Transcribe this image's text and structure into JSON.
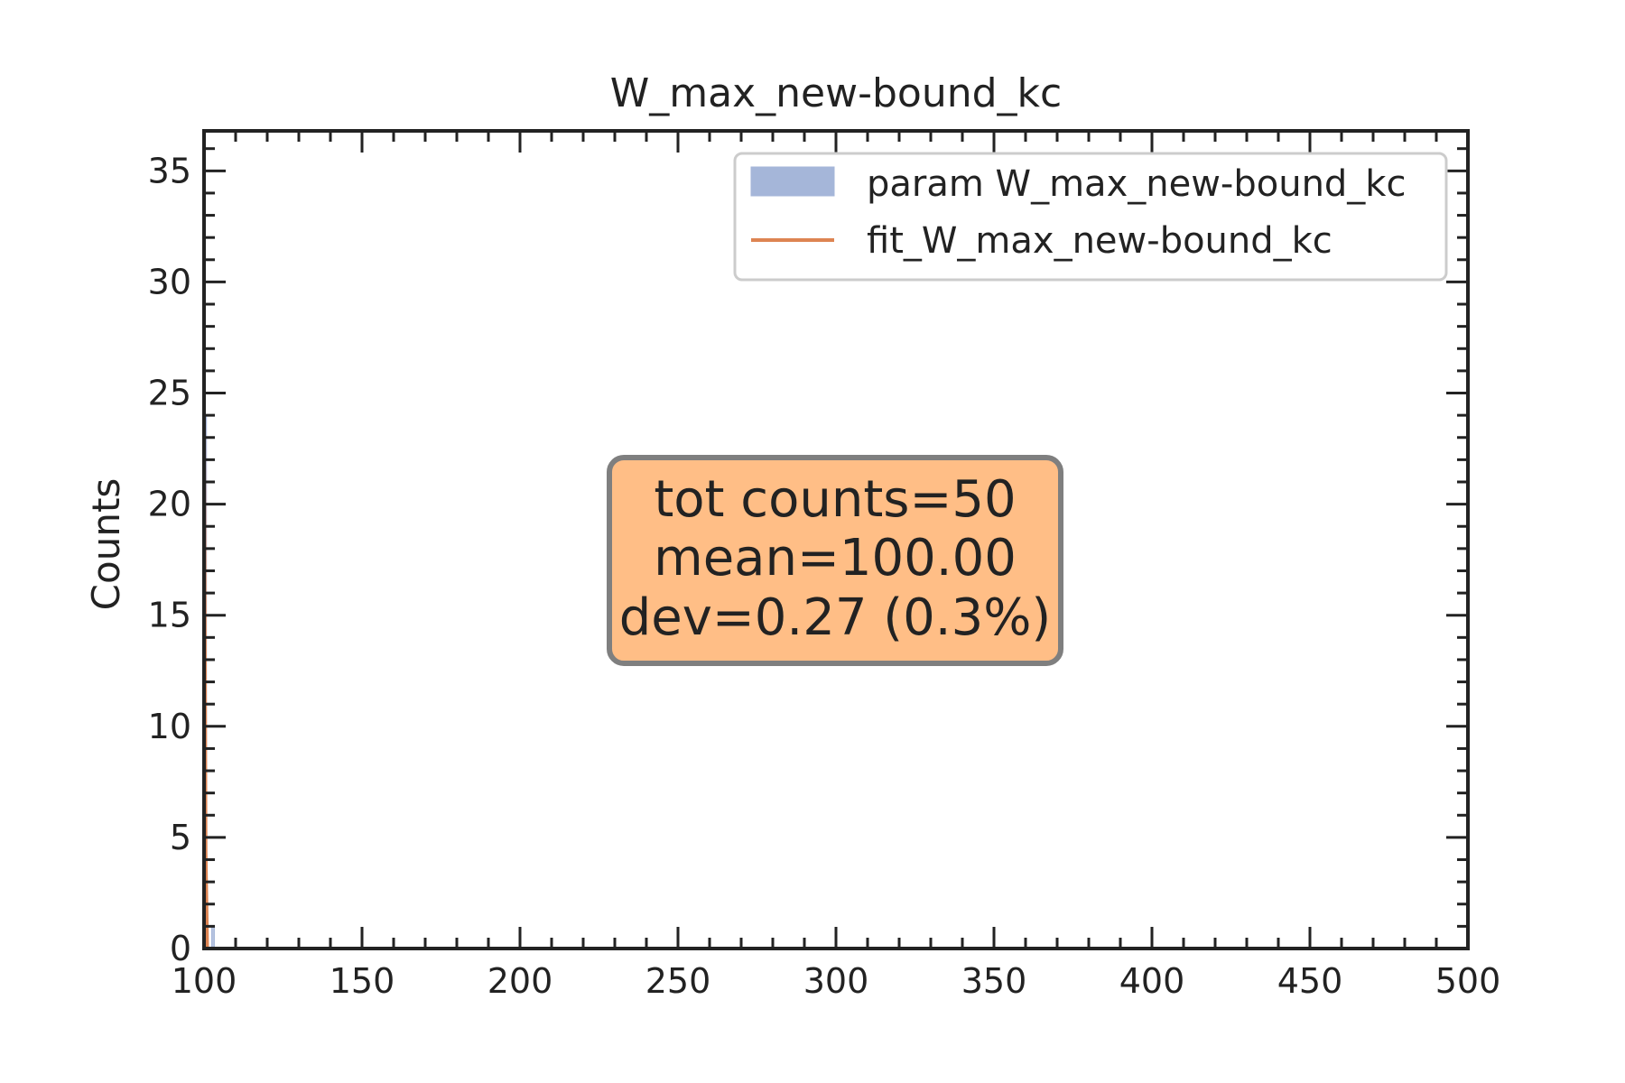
{
  "chart_data": {
    "type": "bar",
    "title": "W_max_new-bound_kc",
    "xlabel": "",
    "ylabel": "Counts",
    "xlim": [
      100,
      500
    ],
    "ylim": [
      0,
      36.8
    ],
    "x_ticks": [
      100,
      150,
      200,
      250,
      300,
      350,
      400,
      450,
      500
    ],
    "y_ticks": [
      0,
      5,
      10,
      15,
      20,
      25,
      30,
      35
    ],
    "grid": false,
    "legend_position": "top-right",
    "histogram": {
      "name": "param W_max_new-bound_kc",
      "color": "#a5b6d9",
      "bins": [
        {
          "x0": 99.2,
          "x1": 99.7,
          "count": 1
        },
        {
          "x0": 99.7,
          "x1": 100.2,
          "count": 24
        },
        {
          "x0": 100.2,
          "x1": 100.7,
          "count": 24
        },
        {
          "x0": 102.5,
          "x1": 103.2,
          "count": 1
        }
      ]
    },
    "fit": {
      "name": "fit_W_max_new-bound_kc",
      "color": "#dd8452",
      "type": "gaussian",
      "mean": 100.0,
      "sigma": 0.27,
      "amplitude": 24
    },
    "stats_box": {
      "lines": [
        "tot counts=50",
        "mean=100.00",
        "dev=0.27 (0.3%)"
      ],
      "background": "#ffbe86",
      "border": "#7f7f7f"
    }
  }
}
